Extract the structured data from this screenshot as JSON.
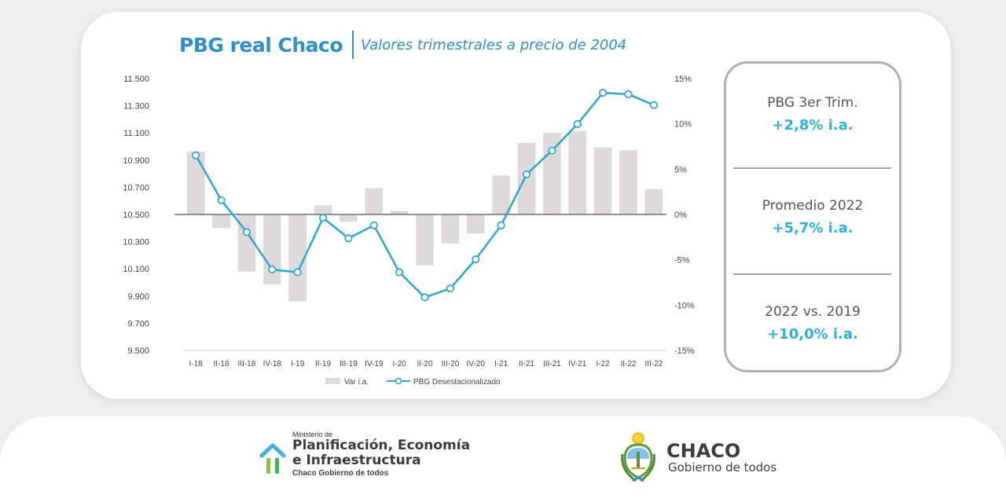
{
  "title": "PBG real Chaco",
  "subtitle": "Valores trimestrales a precio de 2004",
  "chart_data": {
    "type": "bar+line",
    "categories": [
      "I-18",
      "II-18",
      "III-18",
      "IV-18",
      "I-19",
      "II-19",
      "III-19",
      "IV-19",
      "I-20",
      "II-20",
      "III-20",
      "IV-20",
      "I-21",
      "II-21",
      "III-21",
      "IV-21",
      "I-22",
      "II-22",
      "III-22"
    ],
    "series": [
      {
        "name": "Var i.a.",
        "type": "bar",
        "axis": "right",
        "color": "#dedad9",
        "values": [
          6.9,
          -1.5,
          -6.3,
          -7.7,
          -9.6,
          1.0,
          -0.8,
          2.9,
          0.4,
          -5.6,
          -3.2,
          -2.1,
          4.3,
          7.9,
          9.0,
          9.2,
          7.4,
          7.1,
          2.8
        ]
      },
      {
        "name": "PBG Desestacionalizado",
        "type": "line",
        "axis": "left",
        "color": "#33a8cf",
        "values": [
          10935,
          10605,
          10370,
          10095,
          10075,
          10475,
          10325,
          10420,
          10075,
          9890,
          9955,
          10170,
          10420,
          10795,
          10970,
          11165,
          11395,
          11385,
          11305
        ]
      }
    ],
    "y_left": {
      "ticks": [
        "11.500",
        "11.300",
        "11.100",
        "10.900",
        "10.700",
        "10.500",
        "10.300",
        "10.100",
        "9.900",
        "9.700",
        "9.500"
      ],
      "min": 9500,
      "max": 11500
    },
    "y_right": {
      "ticks": [
        "15%",
        "10%",
        "5%",
        "0%",
        "-5%",
        "-10%",
        "-15%"
      ],
      "min": -15,
      "max": 15
    },
    "legend": {
      "position": "bottom"
    }
  },
  "stats": [
    {
      "label": "PBG 3er Trim.",
      "value": "+2,8% i.a."
    },
    {
      "label": "Promedio 2022",
      "value": "+5,7% i.a."
    },
    {
      "label": "2022 vs. 2019",
      "value": "+10,0% i.a."
    }
  ],
  "footer": {
    "ministry_small": "Ministerio de",
    "ministry_line1": "Planificación, Economía",
    "ministry_line2": "e Infraestructura",
    "ministry_tag": "Chaco Gobierno de todos",
    "chaco_name": "CHACO",
    "chaco_tag": "Gobierno de todos"
  },
  "colors": {
    "accent": "#2f8fc6",
    "value": "#2fb0d9",
    "bar": "#dedad9",
    "line": "#33a8cf"
  }
}
